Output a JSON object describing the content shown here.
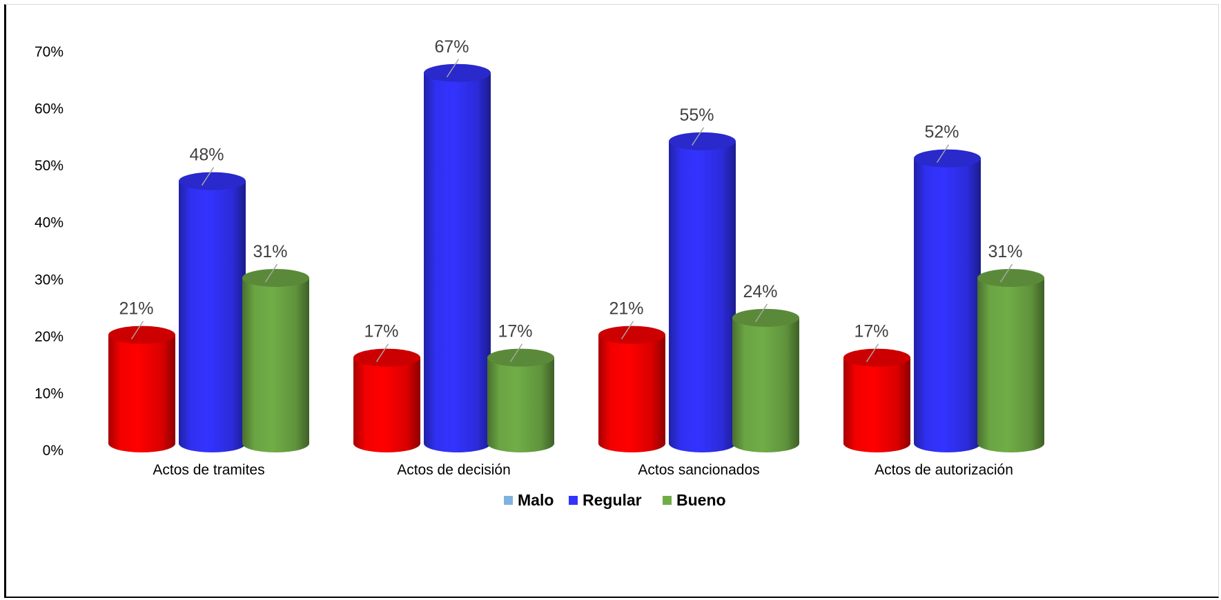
{
  "chart_data": {
    "type": "bar",
    "style": "3d-cylinder",
    "categories": [
      "Actos de tramites",
      "Actos de decisión",
      "Actos sancionados",
      "Actos de autorización"
    ],
    "series": [
      {
        "name": "Malo",
        "color": "#ff0000",
        "values": [
          21,
          17,
          21,
          17
        ]
      },
      {
        "name": "Regular",
        "color": "#3333ff",
        "values": [
          48,
          67,
          55,
          52
        ]
      },
      {
        "name": "Bueno",
        "color": "#70ad47",
        "values": [
          31,
          17,
          24,
          31
        ]
      }
    ],
    "legend_swatch_colors": [
      "#7fb2e0",
      "#3333ff",
      "#70ad47"
    ],
    "y_ticks": [
      "0%",
      "10%",
      "20%",
      "30%",
      "40%",
      "50%",
      "60%",
      "70%"
    ],
    "data_labels": [
      [
        "21%",
        "17%",
        "21%",
        "17%"
      ],
      [
        "48%",
        "67%",
        "55%",
        "52%"
      ],
      [
        "31%",
        "17%",
        "24%",
        "31%"
      ]
    ],
    "ylim": [
      0,
      70
    ],
    "unit": "%",
    "grid": false,
    "legend_position": "bottom",
    "title": "",
    "xlabel": "",
    "ylabel": ""
  }
}
